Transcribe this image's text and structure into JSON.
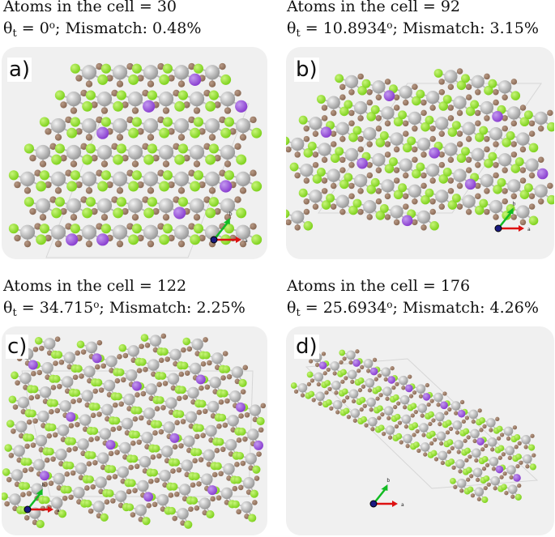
{
  "panels": [
    {
      "label": "a)",
      "atoms": "Atoms in the cell = 30",
      "theta": "= 0",
      "mismatch": ";  Mismatch: 0.48%"
    },
    {
      "label": "b)",
      "atoms": "Atoms in the cell = 92",
      "theta": "= 10.8934",
      "mismatch": ";  Mismatch: 3.15%"
    },
    {
      "label": "c)",
      "atoms": "Atoms in the cell = 122",
      "theta": "= 34.715",
      "mismatch": ";  Mismatch: 2.25%"
    },
    {
      "label": "d)",
      "atoms": "Atoms in the cell = 176",
      "theta": "= 25.6934",
      "mismatch": ";  Mismatch: 4.26%"
    }
  ],
  "theta_symbol": "θ",
  "theta_sub": "t",
  "degree": "o",
  "axis_a": "a",
  "axis_b": "b",
  "colors": {
    "cl": "#7fd21e",
    "i": "#8a3fd0",
    "c": "#8a6a55",
    "metal": "#c4c4c4",
    "panel": "#f0f0f0",
    "axis_a": "#dd1111",
    "axis_b": "#11bb22",
    "axis_c": "#1a1a80"
  }
}
